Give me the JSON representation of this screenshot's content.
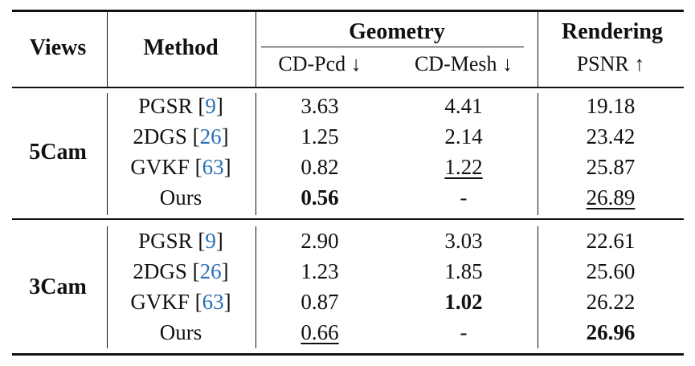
{
  "table": {
    "headers": {
      "views": "Views",
      "method": "Method",
      "geometry": "Geometry",
      "rendering": "Rendering",
      "cd_pcd": "CD-Pcd ↓",
      "cd_mesh": "CD-Mesh ↓",
      "psnr": "PSNR ↑"
    },
    "groups": [
      {
        "view": "5Cam",
        "rows": [
          {
            "method": "PGSR",
            "ref": "9",
            "cd_pcd": "3.63",
            "cd_mesh": "4.41",
            "psnr": "19.18"
          },
          {
            "method": "2DGS",
            "ref": "26",
            "cd_pcd": "1.25",
            "cd_mesh": "2.14",
            "psnr": "23.42"
          },
          {
            "method": "GVKF",
            "ref": "63",
            "cd_pcd": "0.82",
            "cd_mesh": "1.22",
            "psnr": "25.87"
          },
          {
            "method": "Ours",
            "ref": "",
            "cd_pcd": "0.56",
            "cd_mesh": "-",
            "psnr": "26.89"
          }
        ]
      },
      {
        "view": "3Cam",
        "rows": [
          {
            "method": "PGSR",
            "ref": "9",
            "cd_pcd": "2.90",
            "cd_mesh": "3.03",
            "psnr": "22.61"
          },
          {
            "method": "2DGS",
            "ref": "26",
            "cd_pcd": "1.23",
            "cd_mesh": "1.85",
            "psnr": "25.60"
          },
          {
            "method": "GVKF",
            "ref": "63",
            "cd_pcd": "0.87",
            "cd_mesh": "1.02",
            "psnr": "26.22"
          },
          {
            "method": "Ours",
            "ref": "",
            "cd_pcd": "0.66",
            "cd_mesh": "-",
            "psnr": "26.96"
          }
        ]
      }
    ],
    "colors": {
      "text": "#111111",
      "citation": "#2a6fb7",
      "rule": "#111111"
    }
  }
}
